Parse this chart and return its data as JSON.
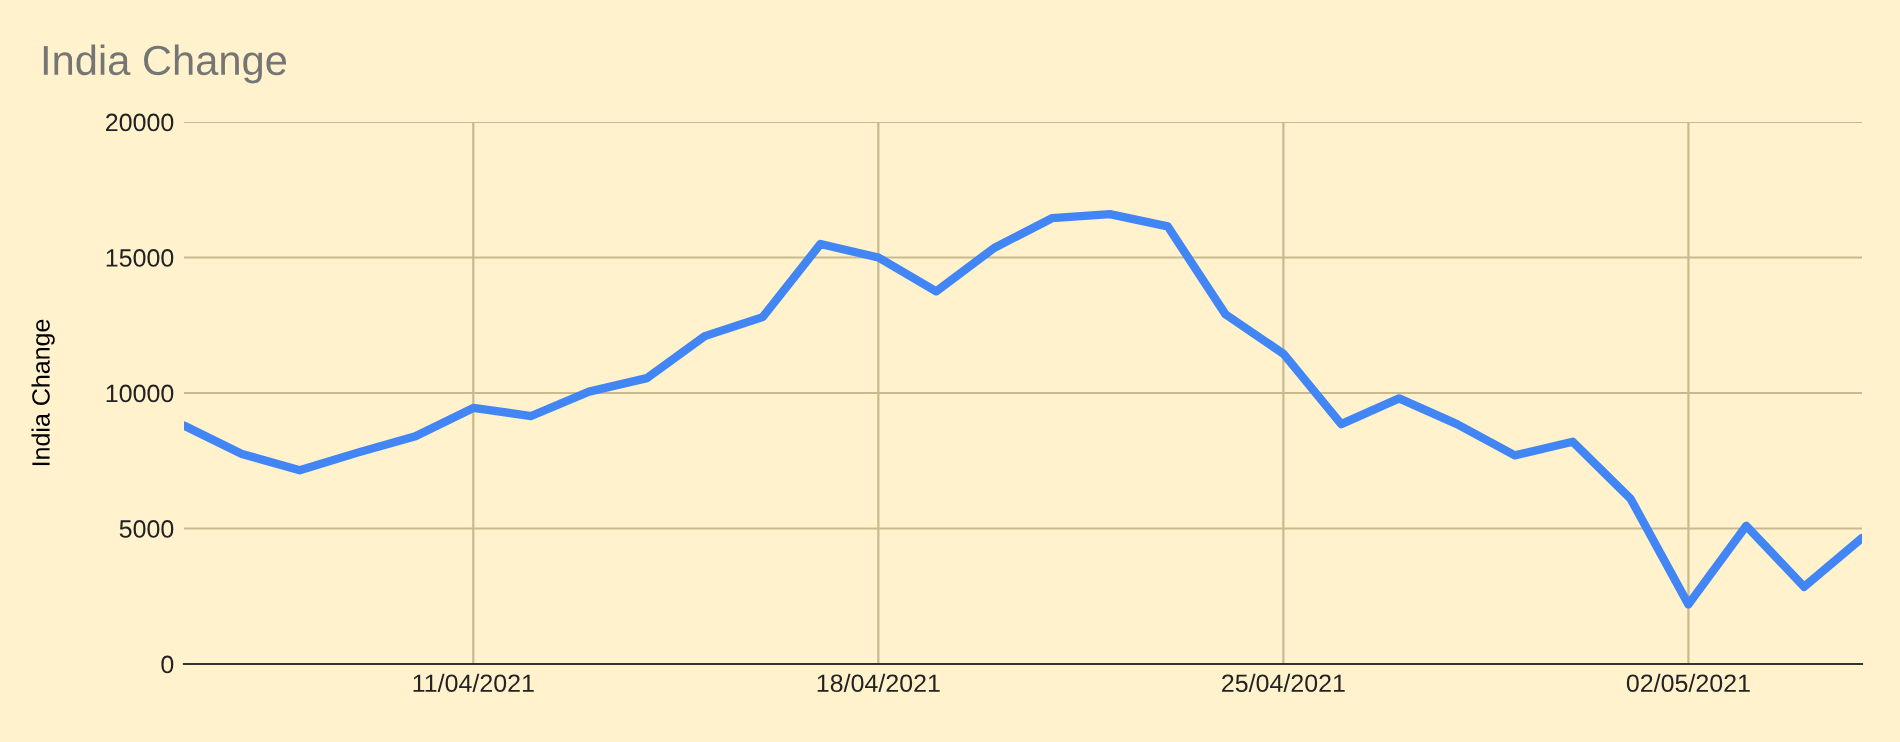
{
  "chart_data": {
    "type": "line",
    "title": "India Change",
    "ylabel": "India Change",
    "x": [
      "2021-04-06",
      "2021-04-07",
      "2021-04-08",
      "2021-04-09",
      "2021-04-10",
      "2021-04-11",
      "2021-04-12",
      "2021-04-13",
      "2021-04-14",
      "2021-04-15",
      "2021-04-16",
      "2021-04-17",
      "2021-04-18",
      "2021-04-19",
      "2021-04-20",
      "2021-04-21",
      "2021-04-22",
      "2021-04-23",
      "2021-04-24",
      "2021-04-25",
      "2021-04-26",
      "2021-04-27",
      "2021-04-28",
      "2021-04-29",
      "2021-04-30",
      "2021-05-01",
      "2021-05-02",
      "2021-05-03",
      "2021-05-04",
      "2021-05-05"
    ],
    "series": [
      {
        "color": "#4285f4",
        "values": [
          8800,
          7750,
          7150,
          7800,
          8400,
          9450,
          9150,
          10050,
          10550,
          12100,
          12800,
          15500,
          15000,
          13750,
          15350,
          16450,
          16600,
          16150,
          12900,
          11450,
          8850,
          9800,
          8850,
          7700,
          8200,
          6100,
          2200,
          5100,
          2850,
          4650
        ]
      }
    ],
    "xlim": [
      "2021-04-06",
      "2021-05-05"
    ],
    "xticks": [
      {
        "value": "2021-04-11",
        "label": "11/04/2021"
      },
      {
        "value": "2021-04-18",
        "label": "18/04/2021"
      },
      {
        "value": "2021-04-25",
        "label": "25/04/2021"
      },
      {
        "value": "2021-05-02",
        "label": "02/05/2021"
      }
    ],
    "ylim": [
      0,
      20000
    ],
    "yticks": [
      0,
      5000,
      10000,
      15000,
      20000
    ],
    "grid": true,
    "legend": false,
    "marker": "none",
    "line_style": "solid"
  }
}
